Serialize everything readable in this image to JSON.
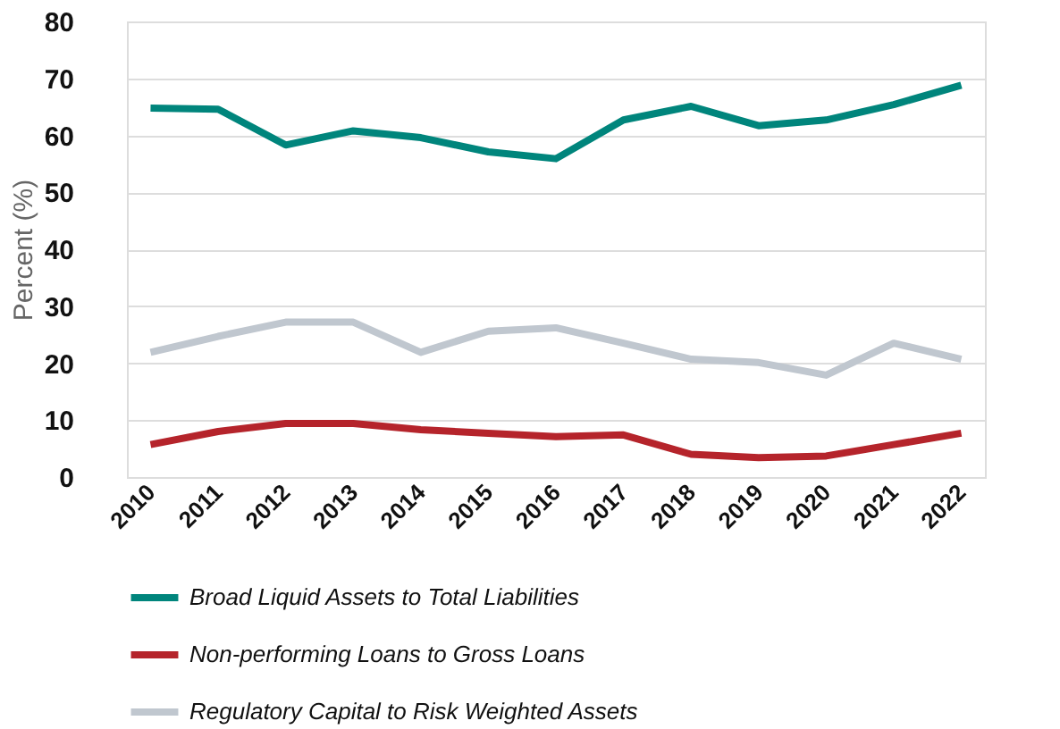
{
  "chart_data": {
    "type": "line",
    "ylabel": "Percent (%)",
    "categories": [
      "2010",
      "2011",
      "2012",
      "2013",
      "2014",
      "2015",
      "2016",
      "2017",
      "2018",
      "2019",
      "2020",
      "2021",
      "2022"
    ],
    "series": [
      {
        "name": "Broad Liquid Assets to Total Liabilities",
        "color": "#00857c",
        "values": [
          64.8,
          64.6,
          58.3,
          60.8,
          59.6,
          57.1,
          55.9,
          62.7,
          65.1,
          61.7,
          62.7,
          65.4,
          68.8
        ]
      },
      {
        "name": "Non-performing Loans to Gross Loans",
        "color": "#b5242b",
        "values": [
          5.7,
          8,
          9.4,
          9.4,
          8.3,
          7.7,
          7.1,
          7.4,
          4,
          3.4,
          3.7,
          5.7,
          7.7
        ]
      },
      {
        "name": "Regulatory Capital to Risk Weighted Assets",
        "color": "#c0c7cf",
        "values": [
          21.9,
          24.7,
          27.2,
          27.2,
          21.9,
          25.6,
          26.2,
          23.5,
          20.7,
          20.1,
          17.9,
          23.5,
          20.7
        ]
      }
    ],
    "ylim": [
      0,
      80
    ],
    "yticks": [
      0,
      10,
      20,
      30,
      40,
      50,
      60,
      70,
      80
    ],
    "grid": "y",
    "legend": "bottom",
    "marker": "none",
    "line_style": "solid"
  }
}
